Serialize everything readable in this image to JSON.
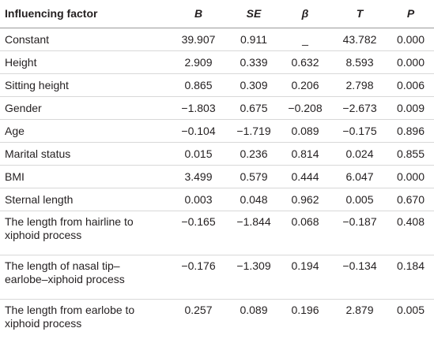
{
  "table": {
    "header": [
      "Influencing factor",
      "B",
      "SE",
      "β",
      "T",
      "P"
    ],
    "rows": [
      [
        "Constant",
        "39.907",
        "0.911",
        "_",
        "43.782",
        "0.000"
      ],
      [
        "Height",
        "2.909",
        "0.339",
        "0.632",
        "8.593",
        "0.000"
      ],
      [
        "Sitting height",
        "0.865",
        "0.309",
        "0.206",
        "2.798",
        "0.006"
      ],
      [
        "Gender",
        "−1.803",
        "0.675",
        "−0.208",
        "−2.673",
        "0.009"
      ],
      [
        "Age",
        "−0.104",
        "−1.719",
        "0.089",
        "−0.175",
        "0.896"
      ],
      [
        "Marital status",
        "0.015",
        "0.236",
        "0.814",
        "0.024",
        "0.855"
      ],
      [
        "BMI",
        "3.499",
        "0.579",
        "0.444",
        "6.047",
        "0.000"
      ],
      [
        "Sternal length",
        "0.003",
        "0.048",
        "0.962",
        "0.005",
        "0.670"
      ],
      [
        "The length from hairline to xiphoid process",
        "−0.165",
        "−1.844",
        "0.068",
        "−0.187",
        "0.408"
      ],
      [
        "The length of nasal tip–earlobe–xiphoid process",
        "−0.176",
        "−1.309",
        "0.194",
        "−0.134",
        "0.184"
      ],
      [
        "The length from earlobe to xiphoid process",
        "0.257",
        "0.089",
        "0.196",
        "2.879",
        "0.005"
      ]
    ]
  }
}
